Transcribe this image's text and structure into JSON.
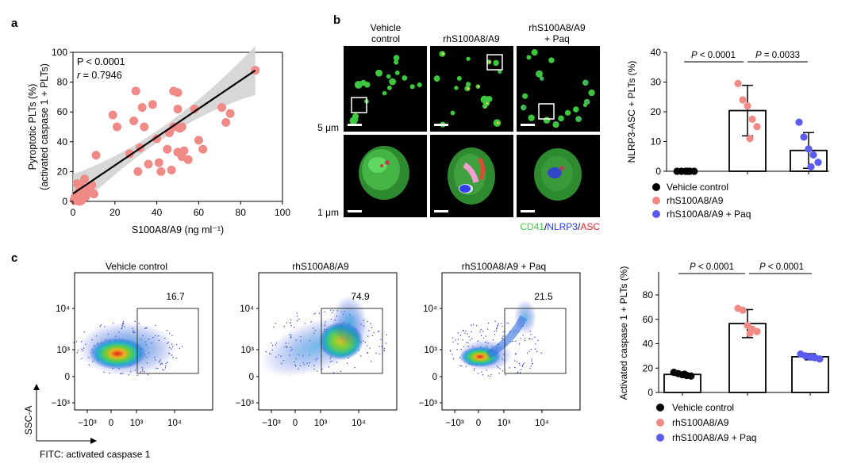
{
  "panel_labels": {
    "a": "a",
    "b": "b",
    "c": "c"
  },
  "panel_a": {
    "stat_p": "P < 0.0001",
    "stat_r_label": "r",
    "stat_r_value": " = 0.7946",
    "ylabel_line1": "Pyroptotic PLTs (%)",
    "ylabel_line2": "(activated caspase 1 + PLTs)",
    "xlabel": "S100A8/A9 (ng ml⁻¹)",
    "colors": {
      "points": "#F08A86",
      "band": "#D3D3D3",
      "line": "#000000"
    },
    "chart_data": {
      "type": "scatter",
      "xlim": [
        0,
        100
      ],
      "ylim": [
        0,
        100
      ],
      "xticks": [
        "0",
        "20",
        "40",
        "60",
        "80",
        "100"
      ],
      "yticks": [
        "0",
        "20",
        "40",
        "60",
        "80",
        "100"
      ],
      "fit": {
        "slope": 0.95,
        "intercept": 5.2
      },
      "points": [
        [
          0.5,
          1
        ],
        [
          1,
          3
        ],
        [
          1.5,
          2
        ],
        [
          2,
          5
        ],
        [
          2.5,
          1
        ],
        [
          3,
          7
        ],
        [
          3.5,
          4
        ],
        [
          4,
          10
        ],
        [
          4.5,
          2
        ],
        [
          5,
          6
        ],
        [
          5.5,
          15
        ],
        [
          6,
          5
        ],
        [
          7,
          8
        ],
        [
          2,
          12
        ],
        [
          3,
          0
        ],
        [
          4,
          0.5
        ],
        [
          1,
          0.5
        ],
        [
          6,
          3
        ],
        [
          8,
          9
        ],
        [
          9,
          11
        ],
        [
          10,
          5
        ],
        [
          11,
          31
        ],
        [
          19,
          58
        ],
        [
          21,
          50
        ],
        [
          27,
          32
        ],
        [
          29,
          54
        ],
        [
          30,
          74
        ],
        [
          31,
          20
        ],
        [
          32,
          36
        ],
        [
          33,
          63
        ],
        [
          34,
          50
        ],
        [
          36,
          25
        ],
        [
          38,
          65
        ],
        [
          40,
          42
        ],
        [
          41,
          26
        ],
        [
          42,
          20
        ],
        [
          45,
          35
        ],
        [
          46,
          46
        ],
        [
          47,
          21
        ],
        [
          48,
          50
        ],
        [
          48,
          74
        ],
        [
          50,
          33
        ],
        [
          50,
          73
        ],
        [
          50,
          62
        ],
        [
          51,
          49
        ],
        [
          52,
          50
        ],
        [
          52,
          30
        ],
        [
          53,
          34
        ],
        [
          55,
          28
        ],
        [
          58,
          62
        ],
        [
          60,
          41
        ],
        [
          62,
          35
        ],
        [
          71,
          63
        ],
        [
          73,
          53
        ],
        [
          75,
          59
        ],
        [
          87,
          88
        ]
      ]
    }
  },
  "panel_b_images": {
    "col_titles": [
      [
        "Vehicle",
        "control"
      ],
      [
        "rhS100A8/A9",
        ""
      ],
      [
        "rhS100A8/A9",
        "+ Paq"
      ]
    ],
    "scale_top": "5 μm",
    "scale_bottom": "1 μm",
    "stain_cd41": "CD41",
    "stain_nlrp3": "NLRP3",
    "stain_asc": "ASC",
    "slash": "/",
    "colors": {
      "cd41": "#3CD23C",
      "nlrp3": "#2A3CFF",
      "asc": "#E8242E"
    }
  },
  "panel_b_bar": {
    "ylabel": "NLRP3-ASC + PLTs (%)",
    "sig": [
      {
        "p_prefix": "P",
        "p_text": " < 0.0001"
      },
      {
        "p_prefix": "P",
        "p_text": " = 0.0033"
      }
    ],
    "legend": [
      "Vehicle control",
      "rhS100A8/A9",
      "rhS100A8/A9 + Paq"
    ],
    "colors": [
      "#000000",
      "#F08A86",
      "#5B5BF0"
    ],
    "chart_data": {
      "type": "bar",
      "categories": [
        "Vehicle control",
        "rhS100A8/A9",
        "rhS100A8/A9 + Paq"
      ],
      "ylim": [
        0,
        40
      ],
      "yticks": [
        "0",
        "10",
        "20",
        "30",
        "40"
      ],
      "values": [
        0,
        20.4,
        7.0
      ],
      "errors": [
        0,
        8.5,
        6.0
      ],
      "points": [
        [
          0,
          0,
          0,
          0,
          0,
          0
        ],
        [
          29.5,
          24,
          22,
          17.5,
          15,
          11
        ],
        [
          16.5,
          11.5,
          7.5,
          5.5,
          3,
          1.5
        ]
      ]
    }
  },
  "panel_c_flow": {
    "titles": [
      "Vehicle control",
      "rhS100A8/A9",
      "rhS100A8/A9 + Paq"
    ],
    "gate_values": [
      "16.7",
      "74.9",
      "21.5"
    ],
    "yticks": [
      "10⁴",
      "10³",
      "0",
      "−10³"
    ],
    "xticks": [
      "−10³",
      "0",
      "10³",
      "10⁴"
    ],
    "yaxis_label": "SSC-A",
    "xaxis_label": "FITC: activated caspase 1"
  },
  "panel_c_bar": {
    "ylabel": "Activated caspase 1 + PLTs (%)",
    "sig": [
      {
        "p_prefix": "P",
        "p_text": " < 0.0001"
      },
      {
        "p_prefix": "P",
        "p_text": " < 0.0001"
      }
    ],
    "legend": [
      "Vehicle control",
      "rhS100A8/A9",
      "rhS100A8/A9 + Paq"
    ],
    "colors": [
      "#000000",
      "#F08A86",
      "#5B5BF0"
    ],
    "chart_data": {
      "type": "bar",
      "categories": [
        "Vehicle control",
        "rhS100A8/A9",
        "rhS100A8/A9 + Paq"
      ],
      "ylim": [
        0,
        80
      ],
      "yticks": [
        "0",
        "20",
        "40",
        "60",
        "80"
      ],
      "values": [
        14.8,
        56.5,
        29.3
      ],
      "errors": [
        1.5,
        11.5,
        2.5
      ],
      "points": [
        [
          16.5,
          15.5,
          14.5,
          14,
          13.5,
          15
        ],
        [
          69,
          67.5,
          55,
          52,
          50,
          48.5
        ],
        [
          31.5,
          30,
          29,
          28.5,
          27.5,
          29
        ]
      ]
    }
  }
}
